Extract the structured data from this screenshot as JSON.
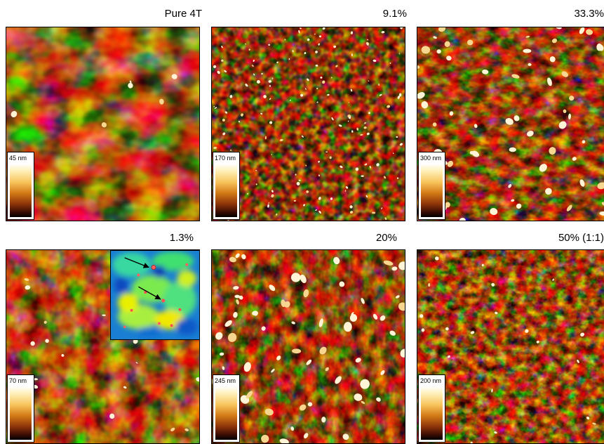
{
  "panels": [
    {
      "id": "pure-4t",
      "title": "Pure 4T",
      "scale": "45 nm",
      "has_inset": false
    },
    {
      "id": "p9-1",
      "title": "9.1%",
      "scale": "170 nm",
      "has_inset": false
    },
    {
      "id": "p33-3",
      "title": "33.3%",
      "scale": "300 nm",
      "has_inset": false
    },
    {
      "id": "p1-3",
      "title": "1.3%",
      "scale": "70 nm",
      "has_inset": true
    },
    {
      "id": "p20",
      "title": "20%",
      "scale": "245 nm",
      "has_inset": false
    },
    {
      "id": "p50",
      "title": "50% (1:1)",
      "scale": "200 nm",
      "has_inset": false
    }
  ],
  "colors": {
    "afm_low": "#1a0300",
    "afm_mid": "#b5560e",
    "afm_high": "#fff6d0",
    "inset_blue": "#1a88d6",
    "inset_green": "#2fe070",
    "inset_yellow": "#f6f000"
  }
}
